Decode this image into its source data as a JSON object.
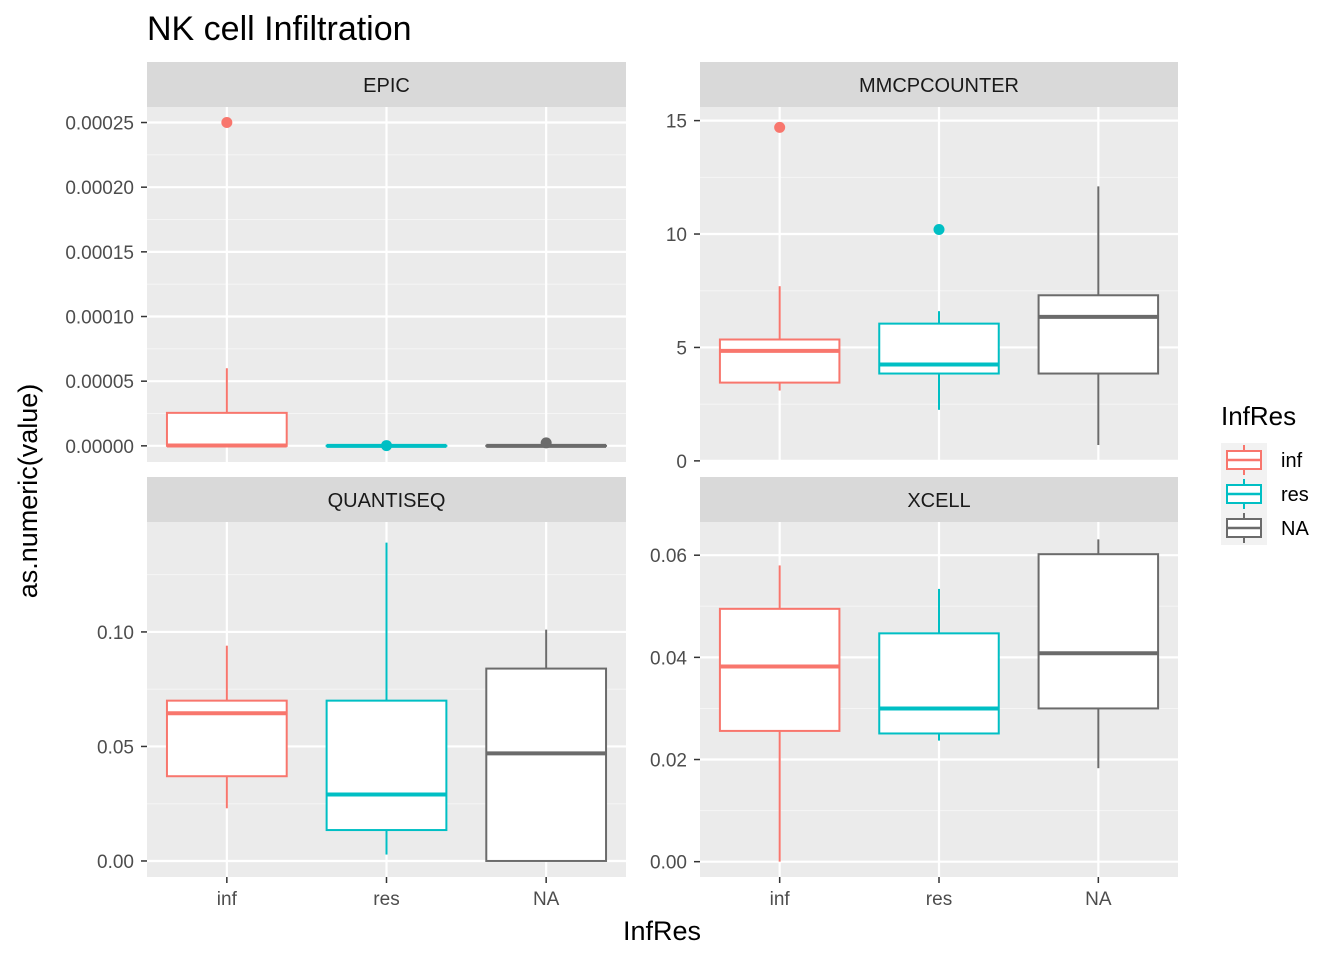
{
  "chart_data": {
    "type": "boxplot",
    "title": "NK cell Infiltration",
    "xlabel": "InfRes",
    "ylabel": "as.numeric(value)",
    "categories": [
      "inf",
      "res",
      "NA"
    ],
    "legend": {
      "title": "InfRes",
      "position": "right",
      "entries": [
        {
          "label": "inf",
          "color": "#F8766D"
        },
        {
          "label": "res",
          "color": "#00BFC4"
        },
        {
          "label": "NA",
          "color": "#6B6B6B"
        }
      ]
    },
    "panels": [
      {
        "name": "EPIC",
        "yticks": [
          "0.00000",
          "0.00005",
          "0.00010",
          "0.00015",
          "0.00020",
          "0.00025"
        ],
        "ytick_values": [
          0,
          5e-05,
          0.0001,
          0.00015,
          0.0002,
          0.00025
        ],
        "ylim": [
          -1.25e-05,
          0.000262
        ],
        "boxes": [
          {
            "category": "inf",
            "min": 0,
            "q1": 0,
            "median": 3e-07,
            "q3": 2.55e-05,
            "max": 6e-05,
            "outliers": [
              0.00025
            ]
          },
          {
            "category": "res",
            "min": 0,
            "q1": 0,
            "median": 0,
            "q3": 0,
            "max": 0,
            "outliers": [
              2e-07
            ]
          },
          {
            "category": "NA",
            "min": 0,
            "q1": 0,
            "median": 0,
            "q3": 0,
            "max": 0,
            "outliers": [
              2.3e-06
            ]
          }
        ]
      },
      {
        "name": "MMCPCOUNTER",
        "yticks": [
          "0",
          "5",
          "10",
          "15"
        ],
        "ytick_values": [
          0,
          5,
          10,
          15
        ],
        "ylim": [
          -0.05,
          15.6
        ],
        "boxes": [
          {
            "category": "inf",
            "min": 3.1,
            "q1": 3.45,
            "median": 4.85,
            "q3": 5.35,
            "max": 7.7,
            "outliers": [
              14.7
            ]
          },
          {
            "category": "res",
            "min": 2.25,
            "q1": 3.85,
            "median": 4.25,
            "q3": 6.05,
            "max": 6.6,
            "outliers": [
              10.2
            ]
          },
          {
            "category": "NA",
            "min": 0.7,
            "q1": 3.85,
            "median": 6.35,
            "q3": 7.3,
            "max": 12.1,
            "outliers": []
          }
        ]
      },
      {
        "name": "QUANTISEQ",
        "yticks": [
          "0.00",
          "0.05",
          "0.10"
        ],
        "ytick_values": [
          0,
          0.05,
          0.1
        ],
        "ylim": [
          -0.007,
          0.148
        ],
        "boxes": [
          {
            "category": "inf",
            "min": 0.023,
            "q1": 0.037,
            "median": 0.0645,
            "q3": 0.07,
            "max": 0.094,
            "outliers": []
          },
          {
            "category": "res",
            "min": 0.0028,
            "q1": 0.0135,
            "median": 0.029,
            "q3": 0.07,
            "max": 0.139,
            "outliers": []
          },
          {
            "category": "NA",
            "min": 0,
            "q1": 0,
            "median": 0.047,
            "q3": 0.084,
            "max": 0.101,
            "outliers": []
          }
        ]
      },
      {
        "name": "XCELL",
        "yticks": [
          "0.00",
          "0.02",
          "0.04",
          "0.06"
        ],
        "ytick_values": [
          0,
          0.02,
          0.04,
          0.06
        ],
        "ylim": [
          -0.003,
          0.0665
        ],
        "boxes": [
          {
            "category": "inf",
            "min": 0,
            "q1": 0.0256,
            "median": 0.0382,
            "q3": 0.0495,
            "max": 0.058,
            "outliers": []
          },
          {
            "category": "res",
            "min": 0.0237,
            "q1": 0.0251,
            "median": 0.03,
            "q3": 0.0447,
            "max": 0.0534,
            "outliers": []
          },
          {
            "category": "NA",
            "min": 0.0183,
            "q1": 0.03,
            "median": 0.0408,
            "q3": 0.0602,
            "max": 0.0631,
            "outliers": []
          }
        ]
      }
    ]
  }
}
